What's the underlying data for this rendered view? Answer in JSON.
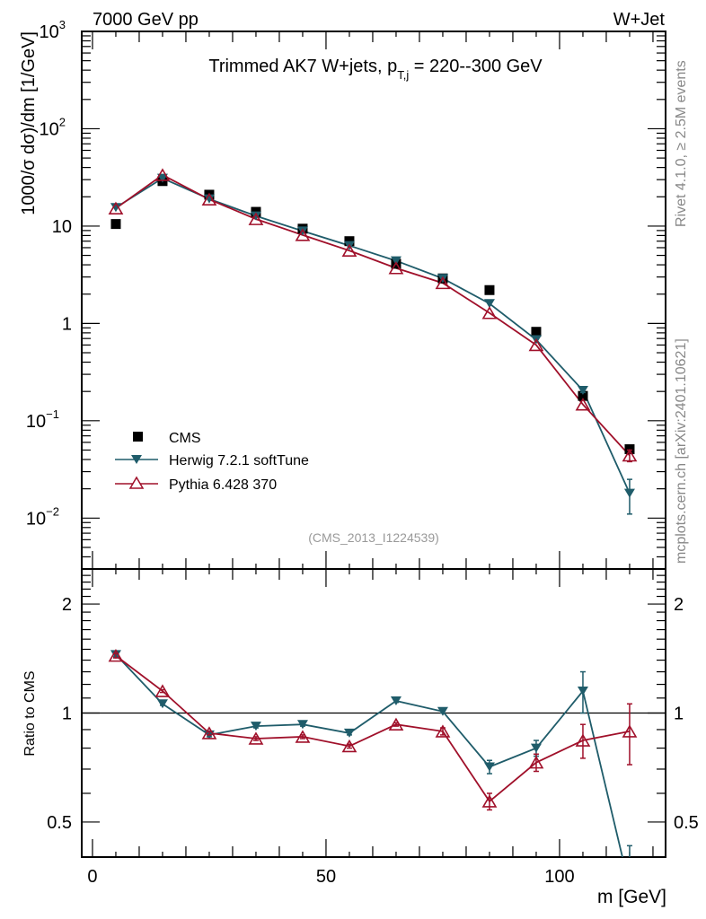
{
  "chart_data": [
    {
      "type": "scatter",
      "panel": "main",
      "title": "Trimmed AK7 W+jets, p_T,j = 220--300 GeV",
      "title_parts": {
        "pre": "Trimmed AK7 W+jets, p",
        "sub": "T,j",
        "post": " = 220--300 GeV"
      },
      "header_left": "7000 GeV pp",
      "header_right": "W+Jet",
      "ylabel": "1000/σ  dσ)/dm [1/GeV]",
      "yscale": "log",
      "ylim": [
        0.003,
        1000
      ],
      "xlim": [
        -2.3,
        122.7
      ],
      "yticks": [
        {
          "value": 1000,
          "base": "10",
          "exp": "3"
        },
        {
          "value": 100,
          "base": "10",
          "exp": "2"
        },
        {
          "value": 10,
          "base": "10",
          "exp": ""
        },
        {
          "value": 1,
          "base": "1",
          "exp": ""
        },
        {
          "value": 0.1,
          "base": "10",
          "exp": "−1"
        },
        {
          "value": 0.01,
          "base": "10",
          "exp": "−2"
        }
      ],
      "x": [
        5,
        15,
        25,
        35,
        45,
        55,
        65,
        75,
        85,
        95,
        105,
        115
      ],
      "series": [
        {
          "name": "CMS",
          "marker": "square",
          "color": "#000000",
          "values": [
            10.5,
            29,
            21,
            14.0,
            9.4,
            7.0,
            4.1,
            2.9,
            2.2,
            0.82,
            0.18,
            0.051
          ],
          "err": [
            0,
            0,
            0,
            0,
            0,
            0,
            0,
            0,
            0,
            0,
            0,
            0.004
          ]
        },
        {
          "name": "Herwig 7.2.1 softTune",
          "marker": "triangle-down",
          "color": "#1f5c6a",
          "values": [
            15.5,
            31.0,
            19.0,
            12.7,
            8.9,
            6.3,
            4.4,
            2.9,
            1.6,
            0.68,
            0.205,
            0.018
          ],
          "err": [
            0,
            0,
            0,
            0,
            0,
            0,
            0,
            0,
            0,
            0,
            0.01,
            0.007
          ]
        },
        {
          "name": "Pythia 6.428 370",
          "marker": "triangle-open",
          "color": "#a0102a",
          "values": [
            15.2,
            33.5,
            18.8,
            11.8,
            8.1,
            5.6,
            3.7,
            2.6,
            1.28,
            0.6,
            0.147,
            0.044
          ],
          "err": [
            0,
            0,
            0,
            0,
            0,
            0,
            0,
            0,
            0,
            0,
            0,
            0.006
          ]
        }
      ],
      "legend": {
        "placement": "bottom-left",
        "entries": [
          "CMS",
          "Herwig 7.2.1 softTune",
          "Pythia 6.428 370"
        ]
      },
      "annotation": "(CMS_2013_I1224539)"
    },
    {
      "type": "line",
      "panel": "ratio",
      "ylabel": "Ratio to CMS",
      "xlabel": "m [GeV]",
      "yscale": "log",
      "ylim": [
        0.4,
        2.5
      ],
      "xlim": [
        -2.3,
        122.7
      ],
      "yticks": [
        0.5,
        1,
        2
      ],
      "xticks": [
        0,
        50,
        100
      ],
      "reference_line": 1,
      "x": [
        5,
        15,
        25,
        35,
        45,
        55,
        65,
        75,
        85,
        95,
        105,
        115
      ],
      "series": [
        {
          "name": "Herwig 7.2.1 softTune",
          "marker": "triangle-down",
          "color": "#1f5c6a",
          "values": [
            1.45,
            1.06,
            0.87,
            0.92,
            0.93,
            0.88,
            1.08,
            1.01,
            0.71,
            0.8,
            1.15,
            0.33
          ],
          "err": [
            0.02,
            0.01,
            0.01,
            0.01,
            0.01,
            0.01,
            0.01,
            0.01,
            0.03,
            0.04,
            0.15,
            0.1
          ]
        },
        {
          "name": "Pythia 6.428 370",
          "marker": "triangle-open",
          "color": "#a0102a",
          "values": [
            1.44,
            1.15,
            0.88,
            0.85,
            0.86,
            0.81,
            0.93,
            0.89,
            0.57,
            0.73,
            0.84,
            0.89
          ],
          "err": [
            0.02,
            0.01,
            0.01,
            0.01,
            0.01,
            0.01,
            0.01,
            0.02,
            0.03,
            0.04,
            0.09,
            0.17
          ]
        }
      ]
    }
  ],
  "side_labels": {
    "rivet": "Rivet 4.1.0, ≥ 2.5M events",
    "mcplots": "mcplots.cern.ch [arXiv:2401.10621]"
  }
}
